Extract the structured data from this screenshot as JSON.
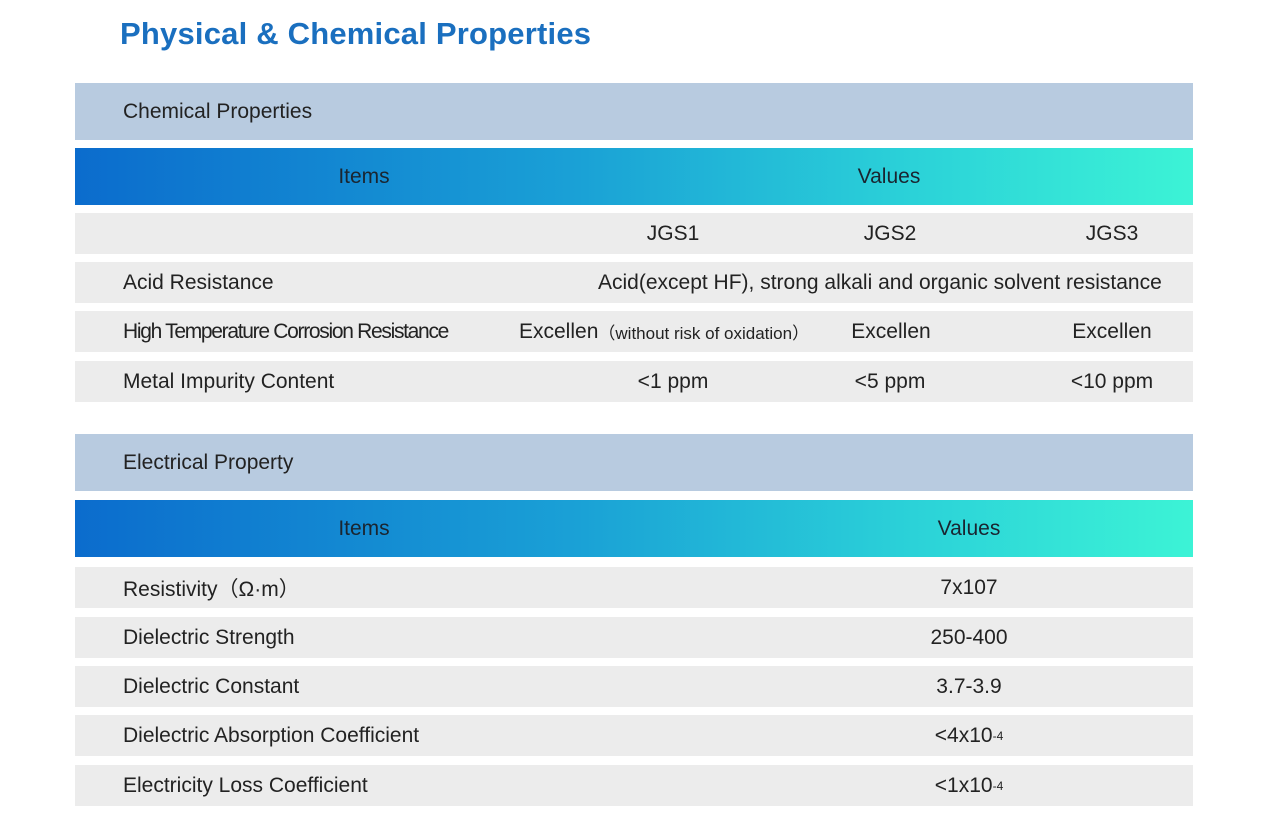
{
  "page_title": "Physical & Chemical Properties",
  "chemical": {
    "section_title": "Chemical Properties",
    "header": {
      "items": "Items",
      "values": "Values"
    },
    "grades": [
      "JGS1",
      "JGS2",
      "JGS3"
    ],
    "acid_resistance": {
      "label": "Acid Resistance",
      "value": "Acid(except HF), strong alkali and organic solvent resistance"
    },
    "high_temp": {
      "label": "High Temperature Corrosion Resistance",
      "values": [
        "Excellen",
        "Excellen",
        "Excellen"
      ],
      "jgs1_note": "（without risk of oxidation）"
    },
    "metal_impurity": {
      "label": "Metal Impurity Content",
      "values": [
        "<1 ppm",
        "<5 ppm",
        "<10 ppm"
      ]
    }
  },
  "electrical": {
    "section_title": "Electrical Property",
    "header": {
      "items": "Items",
      "values": "Values"
    },
    "rows": [
      {
        "label": "Resistivity（Ω·m）",
        "value": "7x107",
        "exp": ""
      },
      {
        "label": "Dielectric Strength",
        "value": "250-400",
        "exp": ""
      },
      {
        "label": "Dielectric Constant",
        "value": "3.7-3.9",
        "exp": ""
      },
      {
        "label": "Dielectric Absorption Coefficient",
        "value": "<4x10",
        "exp": "-4"
      },
      {
        "label": "Electricity Loss Coefficient",
        "value": "<1x10",
        "exp": "-4"
      }
    ]
  }
}
